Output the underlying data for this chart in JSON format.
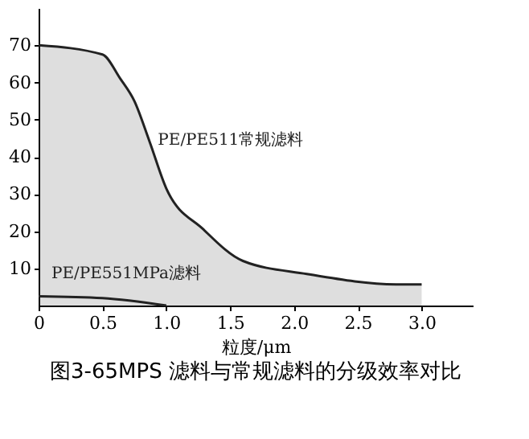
{
  "chart_data": {
    "type": "area",
    "title": "图3-65MPS 滤料与常规滤料的分级效率对比",
    "xlabel": "粒度/μm",
    "xlim": [
      0,
      3.4
    ],
    "xticks": [
      {
        "value": 0,
        "label": "0"
      },
      0.5,
      {
        "value": 1,
        "label": "1.0"
      },
      1.5,
      {
        "value": 2,
        "label": "2.0"
      },
      2.5,
      {
        "value": 3,
        "label": "3.0"
      }
    ],
    "ylim": [
      0,
      80
    ],
    "yticks": [
      10,
      20,
      30,
      40,
      50,
      60,
      70
    ],
    "grid": false,
    "series": [
      {
        "name": "PE/PE511常规滤料",
        "color": "#222222",
        "x": [
          0,
          0.5,
          0.64,
          0.75,
          0.87,
          1.0,
          1.29,
          1.6,
          2.1,
          2.8,
          3.0
        ],
        "values": [
          70,
          67.5,
          61,
          55,
          44,
          31.5,
          20.5,
          12,
          8.5,
          5.7,
          5.7
        ]
      },
      {
        "name": "PE/PE551MPa滤料",
        "type": "line",
        "color": "#222222",
        "x": [
          0,
          0.5,
          1.0
        ],
        "values": [
          2.5,
          2,
          0
        ]
      }
    ]
  }
}
